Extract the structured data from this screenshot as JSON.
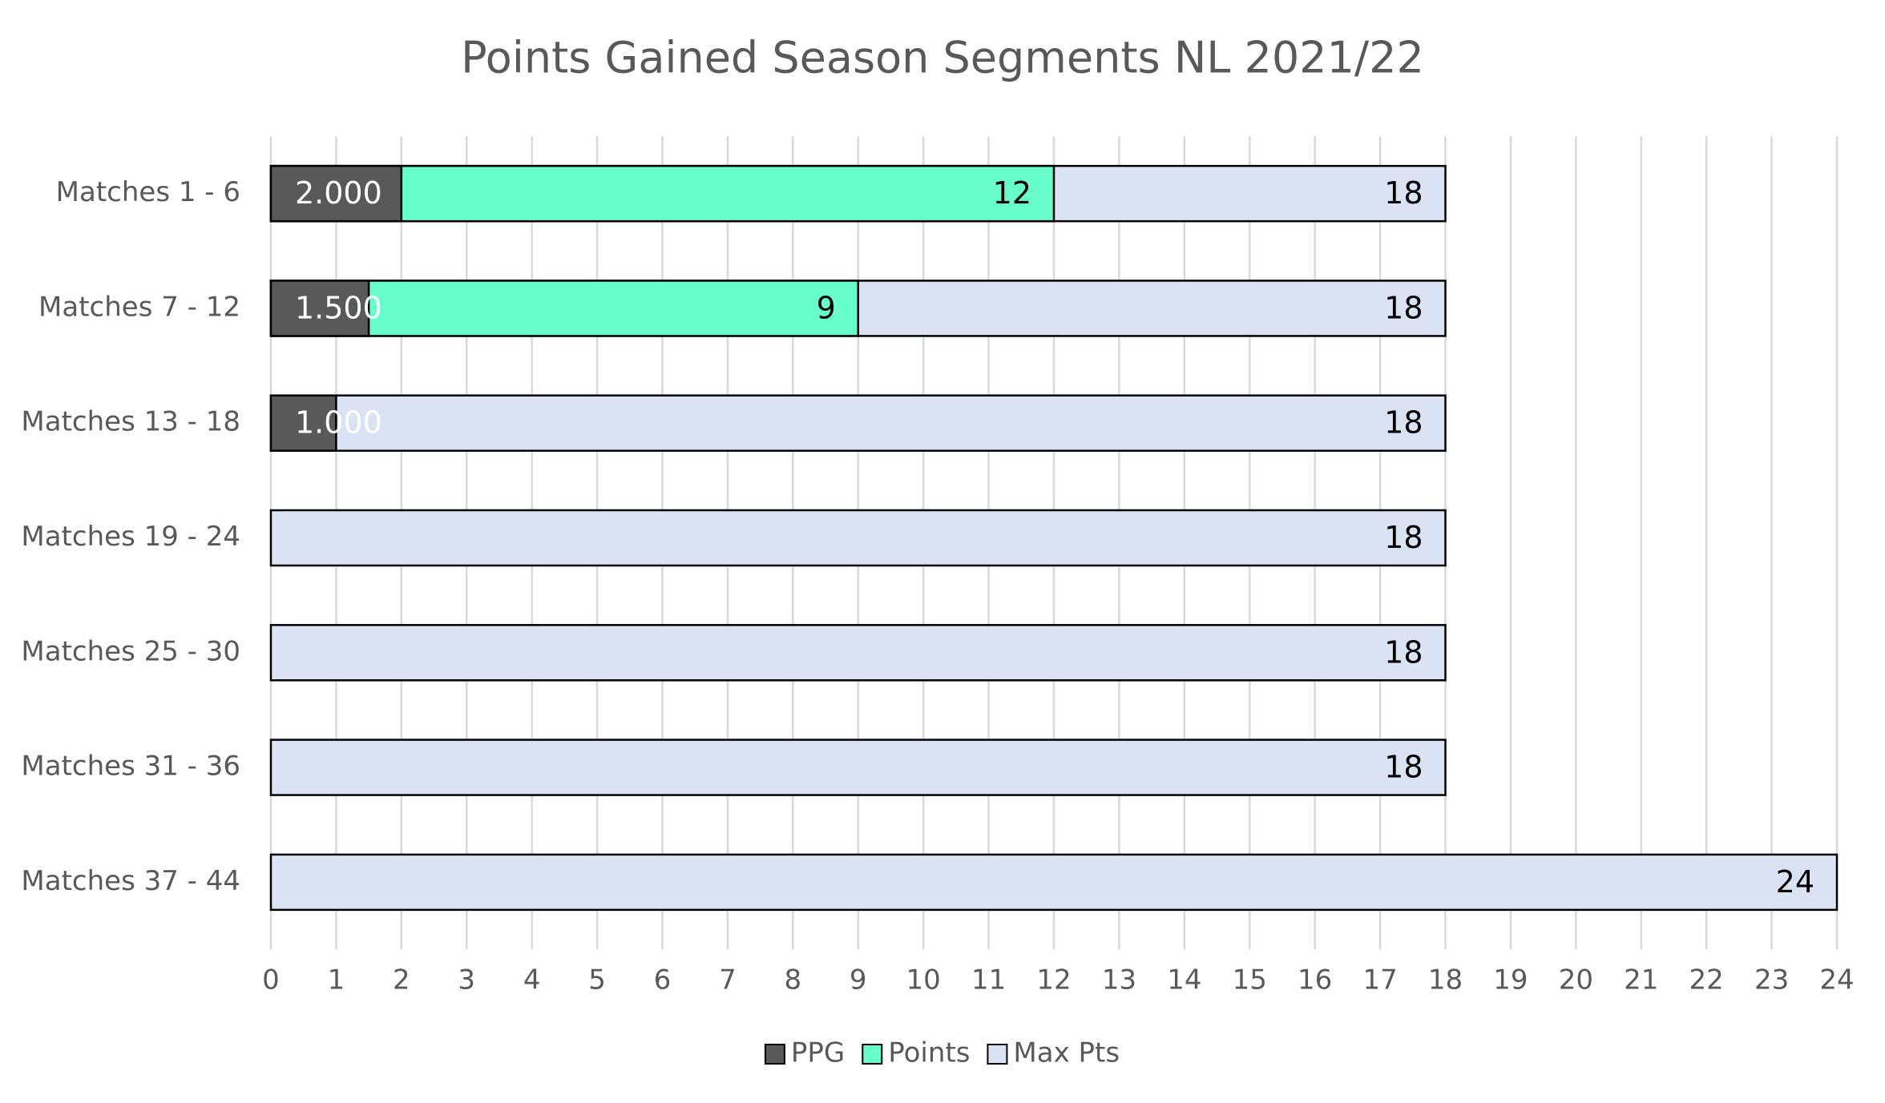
{
  "chart_data": {
    "type": "bar",
    "orientation": "horizontal",
    "overlap": true,
    "title": "Points Gained Season Segments NL 2021/22",
    "categories": [
      "Matches 1 - 6",
      "Matches 7 - 12",
      "Matches 13 - 18",
      "Matches 19 - 24",
      "Matches 25 - 30",
      "Matches 31 - 36",
      "Matches 37 - 44"
    ],
    "series": [
      {
        "name": "PPG",
        "color": "#595959",
        "label_color": "#ffffff",
        "values": [
          2,
          1.5,
          1,
          null,
          null,
          null,
          null
        ],
        "value_labels": [
          "2.000",
          "1.500",
          "1.000",
          null,
          null,
          null,
          null
        ]
      },
      {
        "name": "Points",
        "color": "#66ffcc",
        "label_color": "#000000",
        "values": [
          12,
          9,
          null,
          null,
          null,
          null,
          null
        ]
      },
      {
        "name": "Max Pts",
        "color": "#dae3f3",
        "label_color": "#000000",
        "values": [
          18,
          18,
          18,
          18,
          18,
          18,
          24
        ]
      }
    ],
    "xlim": [
      0,
      24
    ],
    "xticks": [
      0,
      1,
      2,
      3,
      4,
      5,
      6,
      7,
      8,
      9,
      10,
      11,
      12,
      13,
      14,
      15,
      16,
      17,
      18,
      19,
      20,
      21,
      22,
      23,
      24
    ],
    "grid": true,
    "legend": "bottom"
  }
}
